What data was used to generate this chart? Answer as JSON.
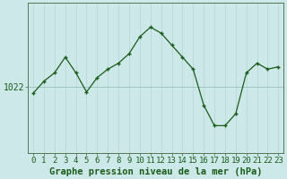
{
  "hours": [
    0,
    1,
    2,
    3,
    4,
    5,
    6,
    7,
    8,
    9,
    10,
    11,
    12,
    13,
    14,
    15,
    16,
    17,
    18,
    19,
    20,
    21,
    22,
    23
  ],
  "pressure": [
    1021.5,
    1022.5,
    1023.2,
    1024.5,
    1023.2,
    1021.6,
    1022.8,
    1023.5,
    1024.0,
    1024.8,
    1026.2,
    1027.0,
    1026.5,
    1025.5,
    1024.5,
    1023.5,
    1020.5,
    1018.8,
    1018.8,
    1019.8,
    1023.2,
    1024.0,
    1023.5,
    1023.7
  ],
  "line_color": "#1a5c1a",
  "marker_color": "#1a5c1a",
  "bg_color": "#cce8e8",
  "grid_color_v": "#b8d8d8",
  "grid_color_h": "#9ec4c4",
  "axis_label_color": "#1a5c1a",
  "tick_label_color": "#1a5c1a",
  "xlabel_text": "Graphe pression niveau de la mer (hPa)",
  "ytick_value": 1022,
  "ylim": [
    1016.5,
    1029.0
  ],
  "tick_fontsize": 6.5,
  "xlabel_fontsize": 7.5
}
